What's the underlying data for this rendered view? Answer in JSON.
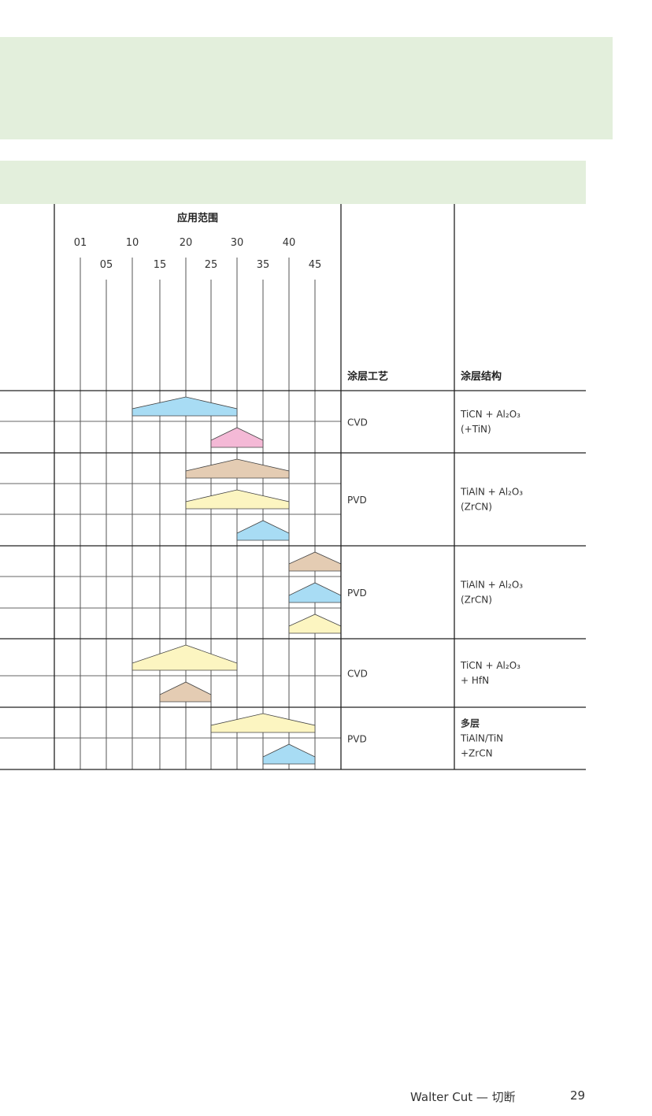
{
  "header": {
    "application_range_title": "应用范围",
    "coating_process_title": "涂层工艺",
    "coating_structure_title": "涂层结构"
  },
  "scale": {
    "ticks": [
      "01",
      "05",
      "10",
      "15",
      "20",
      "25",
      "30",
      "35",
      "40",
      "45"
    ],
    "values": [
      1,
      5,
      10,
      15,
      20,
      25,
      30,
      35,
      40,
      45
    ],
    "max": 50
  },
  "colors": {
    "banner": "#e3efdc",
    "blue": "#a8dcf4",
    "pink": "#f4b9d6",
    "tan": "#e4ccb3",
    "yellow": "#fcf5c1"
  },
  "groups": [
    {
      "process": "CVD",
      "structure": [
        "TiCN + Al₂O₃",
        "(+TiN)"
      ],
      "bold_first": false,
      "rows": [
        {
          "start": 10,
          "peak": 20,
          "end": 30,
          "color": "blue"
        },
        {
          "start": 25,
          "peak": 30,
          "end": 35,
          "color": "pink"
        }
      ]
    },
    {
      "process": "PVD",
      "structure": [
        "TiAlN + Al₂O₃",
        "(ZrCN)"
      ],
      "bold_first": false,
      "rows": [
        {
          "start": 20,
          "peak": 30,
          "end": 40,
          "color": "tan"
        },
        {
          "start": 20,
          "peak": 30,
          "end": 40,
          "color": "yellow"
        },
        {
          "start": 30,
          "peak": 35,
          "end": 40,
          "color": "blue"
        }
      ]
    },
    {
      "process": "PVD",
      "structure": [
        "TiAlN + Al₂O₃",
        "(ZrCN)"
      ],
      "bold_first": false,
      "rows": [
        {
          "start": 40,
          "peak": 45,
          "end": 50,
          "color": "tan"
        },
        {
          "start": 40,
          "peak": 45,
          "end": 50,
          "color": "blue"
        },
        {
          "start": 40,
          "peak": 45,
          "end": 50,
          "color": "yellow"
        }
      ]
    },
    {
      "process": "CVD",
      "structure": [
        "TiCN + Al₂O₃",
        "+ HfN"
      ],
      "bold_first": false,
      "rows": [
        {
          "start": 10,
          "peak": 20,
          "end": 30,
          "color": "yellow"
        },
        {
          "start": 15,
          "peak": 20,
          "end": 25,
          "color": "tan"
        }
      ]
    },
    {
      "process": "PVD",
      "structure": [
        "多层",
        "TiAlN/TiN",
        "+ZrCN"
      ],
      "bold_first": true,
      "rows": [
        {
          "start": 25,
          "peak": 35,
          "end": 45,
          "color": "yellow"
        },
        {
          "start": 35,
          "peak": 40,
          "end": 45,
          "color": "blue"
        }
      ]
    }
  ],
  "footer": {
    "title": "Walter Cut — 切断",
    "page": "29"
  }
}
